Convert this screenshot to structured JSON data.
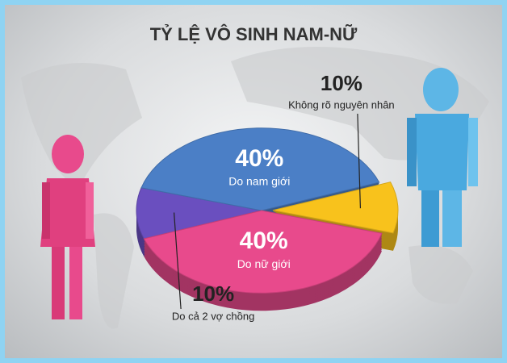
{
  "chart_data": {
    "type": "pie",
    "title": "TỶ LỆ VÔ SINH NAM-NỮ",
    "categories": [
      "Do cả 2 vợ chồng",
      "Do nam giới",
      "Không rõ nguyên nhân",
      "Do nữ giới"
    ],
    "values": [
      10,
      40,
      10,
      40
    ],
    "value_labels": [
      "10%",
      "40%",
      "10%",
      "40%"
    ],
    "colors": [
      "#6a4fbf",
      "#4b7fc6",
      "#f8c21c",
      "#e84a8c"
    ]
  }
}
